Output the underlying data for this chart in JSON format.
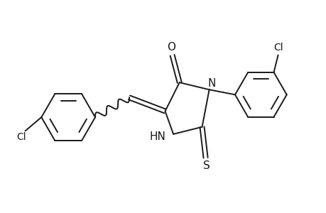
{
  "bg_color": "#ffffff",
  "line_color": "#1a1a1a",
  "lw": 1.4,
  "fs": 10,
  "fs_small": 10,
  "xlim": [
    0,
    10
  ],
  "ylim": [
    0,
    7
  ]
}
